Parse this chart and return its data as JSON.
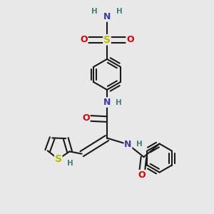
{
  "bg_color": "#e8e8e8",
  "bond_color": "#1a1a1a",
  "bond_width": 1.5,
  "colors": {
    "N": "#3a3aaa",
    "O": "#dd0000",
    "S_sulfonyl": "#bbbb00",
    "S_thienyl": "#bbbb00",
    "H": "#408080",
    "C": "#1a1a1a"
  },
  "font_size_atom": 9,
  "font_size_H": 7.5
}
